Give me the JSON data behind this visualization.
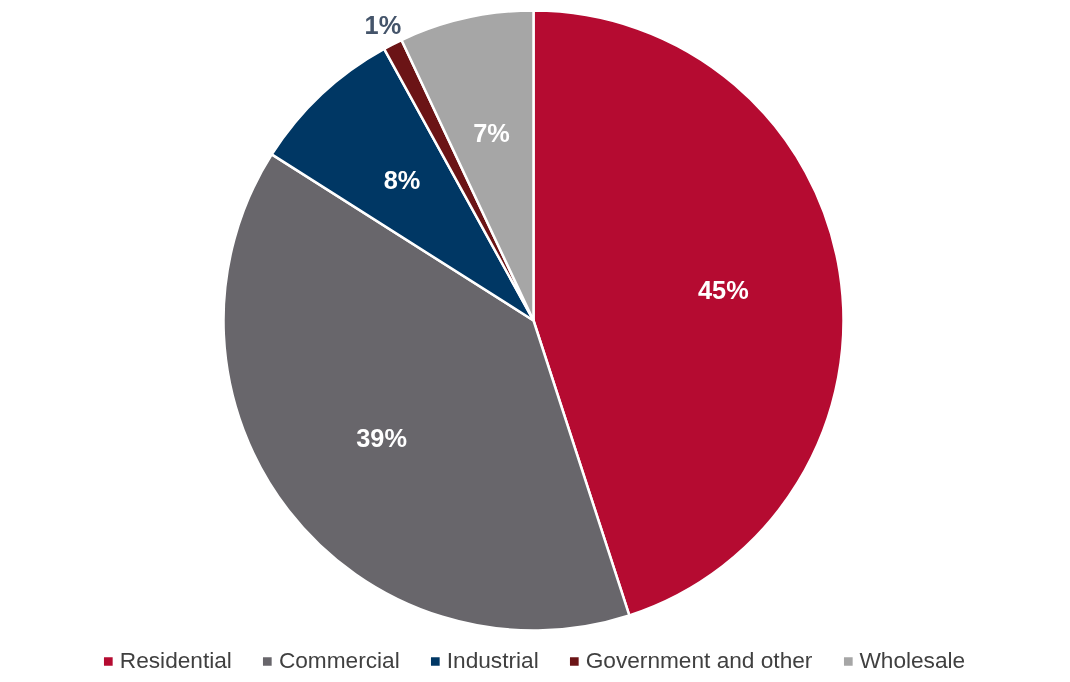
{
  "chart_data": {
    "type": "pie",
    "categories": [
      "Residential",
      "Commercial",
      "Industrial",
      "Government and other",
      "Wholesale"
    ],
    "values": [
      45,
      39,
      8,
      1,
      7
    ],
    "colors": [
      "#b50b31",
      "#68666b",
      "#003764",
      "#6b1416",
      "#a6a6a6"
    ],
    "value_labels": [
      "45%",
      "39%",
      "8%",
      "1%",
      "7%"
    ],
    "legend": "bottom"
  }
}
